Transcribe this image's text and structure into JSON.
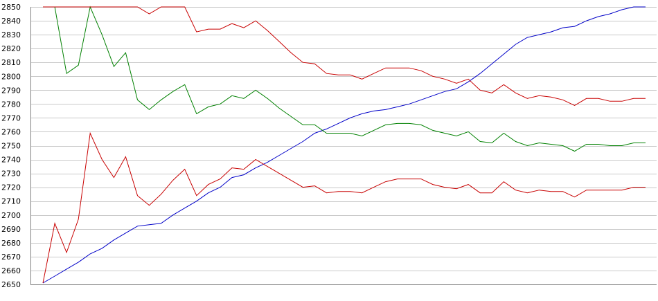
{
  "chart_data": {
    "type": "line",
    "title": "",
    "xlabel": "",
    "ylabel": "",
    "ylim": [
      2650,
      2850
    ],
    "ytick_step": 10,
    "yticks": [
      "2650",
      "2660",
      "2670",
      "2680",
      "2690",
      "2700",
      "2710",
      "2720",
      "2730",
      "2740",
      "2750",
      "2760",
      "2770",
      "2780",
      "2790",
      "2800",
      "2810",
      "2820",
      "2830",
      "2840",
      "2850"
    ],
    "grid": true,
    "legend": "none",
    "x": [
      0,
      1,
      2,
      3,
      4,
      5,
      6,
      7,
      8,
      9,
      10,
      11,
      12,
      13,
      14,
      15,
      16,
      17,
      18,
      19,
      20,
      21,
      22,
      23,
      24,
      25,
      26,
      27,
      28,
      29,
      30,
      31,
      32,
      33,
      34,
      35,
      36,
      37,
      38,
      39,
      40,
      41,
      42,
      43,
      44,
      45,
      46,
      47,
      48,
      49,
      50,
      51
    ],
    "series": [
      {
        "color": "#0000c8",
        "values": [
          2651,
          2656,
          2661,
          2666,
          2672,
          2676,
          2682,
          2687,
          2692,
          2693,
          2694,
          2700,
          2705,
          2710,
          2716,
          2720,
          2727,
          2729,
          2734,
          2738,
          2743,
          2748,
          2753,
          2759,
          2762,
          2766,
          2770,
          2773,
          2775,
          2776,
          2778,
          2780,
          2783,
          2786,
          2789,
          2791,
          2796,
          2802,
          2809,
          2816,
          2823,
          2828,
          2830,
          2832,
          2835,
          2836,
          2840,
          2843,
          2845,
          2848,
          2850,
          2850
        ]
      },
      {
        "color": "#008000",
        "values": [
          2850,
          2850,
          2802,
          2808,
          2850,
          2830,
          2807,
          2817,
          2783,
          2776,
          2783,
          2789,
          2794,
          2773,
          2778,
          2780,
          2786,
          2784,
          2790,
          2784,
          2777,
          2771,
          2765,
          2765,
          2759,
          2759,
          2759,
          2757,
          2761,
          2765,
          2766,
          2766,
          2765,
          2761,
          2759,
          2757,
          2760,
          2753,
          2752,
          2759,
          2753,
          2750,
          2752,
          2751,
          2750,
          2746,
          2751,
          2751,
          2750,
          2750,
          2752,
          2752
        ]
      },
      {
        "color": "#c80000",
        "values": [
          2850,
          2850,
          2850,
          2850,
          2850,
          2850,
          2850,
          2850,
          2850,
          2845,
          2850,
          2850,
          2850,
          2832,
          2834,
          2834,
          2838,
          2835,
          2840,
          2833,
          2825,
          2817,
          2810,
          2809,
          2802,
          2801,
          2801,
          2798,
          2802,
          2806,
          2806,
          2806,
          2804,
          2800,
          2798,
          2795,
          2798,
          2790,
          2788,
          2794,
          2788,
          2784,
          2786,
          2785,
          2783,
          2779,
          2784,
          2784,
          2782,
          2782,
          2784,
          2784
        ]
      },
      {
        "color": "#c80000",
        "values": [
          2651,
          2694,
          2673,
          2697,
          2759,
          2740,
          2727,
          2742,
          2714,
          2707,
          2715,
          2725,
          2733,
          2714,
          2722,
          2726,
          2734,
          2733,
          2740,
          2735,
          2730,
          2725,
          2720,
          2721,
          2716,
          2717,
          2717,
          2716,
          2720,
          2724,
          2726,
          2726,
          2726,
          2722,
          2720,
          2719,
          2722,
          2716,
          2716,
          2724,
          2718,
          2716,
          2718,
          2717,
          2717,
          2713,
          2718,
          2718,
          2718,
          2718,
          2720,
          2720
        ]
      }
    ]
  }
}
